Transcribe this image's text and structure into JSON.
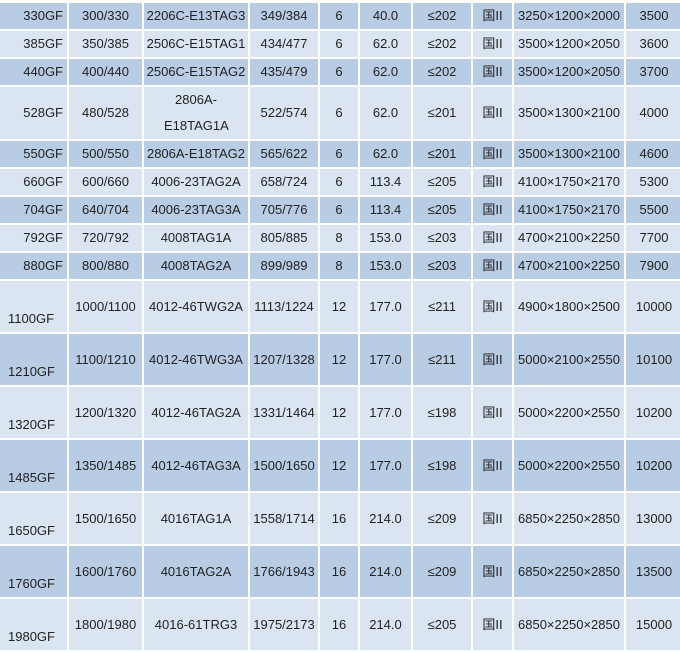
{
  "rows": [
    {
      "model": "330GF",
      "power": "300/330",
      "engine": "2206C-E13TAG3",
      "engine_power": "349/384",
      "cylinders": "6",
      "fuel": "40.0",
      "consumption": "≤202",
      "emission": "国II",
      "dimensions": "3250×1200×2000",
      "weight": "3500"
    },
    {
      "model": "385GF",
      "power": "350/385",
      "engine": "2506C-E15TAG1",
      "engine_power": "434/477",
      "cylinders": "6",
      "fuel": "62.0",
      "consumption": "≤202",
      "emission": "国II",
      "dimensions": "3500×1200×2050",
      "weight": "3600"
    },
    {
      "model": "440GF",
      "power": "400/440",
      "engine": "2506C-E15TAG2",
      "engine_power": "435/479",
      "cylinders": "6",
      "fuel": "62.0",
      "consumption": "≤202",
      "emission": "国II",
      "dimensions": "3500×1200×2050",
      "weight": "3700"
    },
    {
      "model": "528GF",
      "power": "480/528",
      "engine": "2806A-E18TAG1A",
      "engine_power": "522/574",
      "cylinders": "6",
      "fuel": "62.0",
      "consumption": "≤201",
      "emission": "国II",
      "dimensions": "3500×1300×2100",
      "weight": "4000"
    },
    {
      "model": "550GF",
      "power": "500/550",
      "engine": "2806A-E18TAG2",
      "engine_power": "565/622",
      "cylinders": "6",
      "fuel": "62.0",
      "consumption": "≤201",
      "emission": "国II",
      "dimensions": "3500×1300×2100",
      "weight": "4600"
    },
    {
      "model": "660GF",
      "power": "600/660",
      "engine": "4006-23TAG2A",
      "engine_power": "658/724",
      "cylinders": "6",
      "fuel": "113.4",
      "consumption": "≤205",
      "emission": "国II",
      "dimensions": "4100×1750×2170",
      "weight": "5300"
    },
    {
      "model": "704GF",
      "power": "640/704",
      "engine": "4006-23TAG3A",
      "engine_power": "705/776",
      "cylinders": "6",
      "fuel": "113.4",
      "consumption": "≤205",
      "emission": "国II",
      "dimensions": "4100×1750×2170",
      "weight": "5500"
    },
    {
      "model": "792GF",
      "power": "720/792",
      "engine": "4008TAG1A",
      "engine_power": "805/885",
      "cylinders": "8",
      "fuel": "153.0",
      "consumption": "≤203",
      "emission": "国II",
      "dimensions": "4700×2100×2250",
      "weight": "7700"
    },
    {
      "model": "880GF",
      "power": "800/880",
      "engine": "4008TAG2A",
      "engine_power": "899/989",
      "cylinders": "8",
      "fuel": "153.0",
      "consumption": "≤203",
      "emission": "国II",
      "dimensions": "4700×2100×2250",
      "weight": "7900"
    },
    {
      "model": "1100GF",
      "power": "1000/1100",
      "engine": "4012-46TWG2A",
      "engine_power": "1113/1224",
      "cylinders": "12",
      "fuel": "177.0",
      "consumption": "≤211",
      "emission": "国II",
      "dimensions": "4900×1800×2500",
      "weight": "10000"
    },
    {
      "model": "1210GF",
      "power": "1100/1210",
      "engine": "4012-46TWG3A",
      "engine_power": "1207/1328",
      "cylinders": "12",
      "fuel": "177.0",
      "consumption": "≤211",
      "emission": "国II",
      "dimensions": "5000×2100×2550",
      "weight": "10100"
    },
    {
      "model": "1320GF",
      "power": "1200/1320",
      "engine": "4012-46TAG2A",
      "engine_power": "1331/1464",
      "cylinders": "12",
      "fuel": "177.0",
      "consumption": "≤198",
      "emission": "国II",
      "dimensions": "5000×2200×2550",
      "weight": "10200"
    },
    {
      "model": "1485GF",
      "power": "1350/1485",
      "engine": "4012-46TAG3A",
      "engine_power": "1500/1650",
      "cylinders": "12",
      "fuel": "177.0",
      "consumption": "≤198",
      "emission": "国II",
      "dimensions": "5000×2200×2550",
      "weight": "10200"
    },
    {
      "model": "1650GF",
      "power": "1500/1650",
      "engine": "4016TAG1A",
      "engine_power": "1558/1714",
      "cylinders": "16",
      "fuel": "214.0",
      "consumption": "≤209",
      "emission": "国II",
      "dimensions": "6850×2250×2850",
      "weight": "13000"
    },
    {
      "model": "1760GF",
      "power": "1600/1760",
      "engine": "4016TAG2A",
      "engine_power": "1766/1943",
      "cylinders": "16",
      "fuel": "214.0",
      "consumption": "≤209",
      "emission": "国II",
      "dimensions": "6850×2250×2850",
      "weight": "13500"
    },
    {
      "model": "1980GF",
      "power": "1800/1980",
      "engine": "4016-61TRG3",
      "engine_power": "1975/2173",
      "cylinders": "16",
      "fuel": "214.0",
      "consumption": "≤205",
      "emission": "国II",
      "dimensions": "6850×2250×2850",
      "weight": "15000"
    }
  ],
  "colors": {
    "row_dark": "#b8cce4",
    "row_light": "#dbe5f1"
  }
}
